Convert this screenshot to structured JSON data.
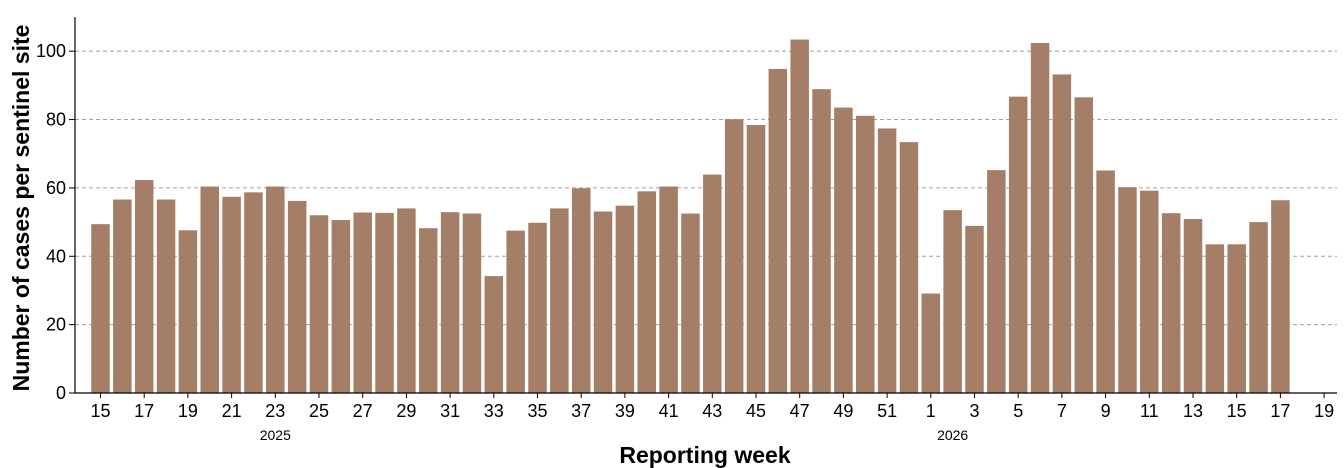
{
  "chart_data": {
    "type": "bar",
    "title": "",
    "xlabel": "Reporting week",
    "ylabel": "Number of cases per sentinel site",
    "ylim": [
      0,
      110
    ],
    "yticks": [
      0,
      20,
      40,
      60,
      80,
      100
    ],
    "grid": "y-dashed",
    "bar_color": "#a57e68",
    "categories": [
      "15",
      "16",
      "17",
      "18",
      "19",
      "20",
      "21",
      "22",
      "23",
      "24",
      "25",
      "26",
      "27",
      "28",
      "29",
      "30",
      "31",
      "32",
      "33",
      "34",
      "35",
      "36",
      "37",
      "38",
      "39",
      "40",
      "41",
      "42",
      "43",
      "44",
      "45",
      "46",
      "47",
      "48",
      "49",
      "50",
      "51",
      "52",
      "1",
      "2",
      "3",
      "4",
      "5",
      "6",
      "7",
      "8",
      "9",
      "10",
      "11",
      "12",
      "13",
      "14",
      "15",
      "16",
      "17",
      "18",
      "19"
    ],
    "values": [
      49.4,
      56.6,
      62.3,
      56.6,
      47.6,
      60.4,
      57.4,
      58.7,
      60.4,
      56.2,
      52.0,
      50.6,
      52.8,
      52.7,
      54.0,
      48.2,
      52.9,
      52.5,
      34.2,
      47.5,
      49.8,
      54.0,
      59.9,
      53.1,
      54.8,
      59.0,
      60.4,
      52.5,
      63.9,
      80.1,
      78.4,
      94.8,
      103.4,
      88.9,
      83.5,
      81.1,
      77.4,
      73.4,
      29.1,
      53.5,
      48.9,
      65.2,
      86.7,
      102.4,
      93.2,
      86.5,
      65.1,
      60.2,
      59.2,
      52.6,
      50.9,
      43.5,
      43.5,
      50.0,
      56.4,
      null,
      null
    ],
    "xtick_labels": [
      "15",
      "17",
      "19",
      "21",
      "23",
      "25",
      "27",
      "29",
      "31",
      "33",
      "35",
      "37",
      "39",
      "41",
      "43",
      "45",
      "47",
      "49",
      "51",
      "1",
      "3",
      "5",
      "7",
      "9",
      "11",
      "13",
      "15",
      "17",
      "19"
    ],
    "year_labels": [
      {
        "text": "2025",
        "at_category_index": 8
      },
      {
        "text": "2026",
        "at_category_index": 39
      }
    ]
  }
}
